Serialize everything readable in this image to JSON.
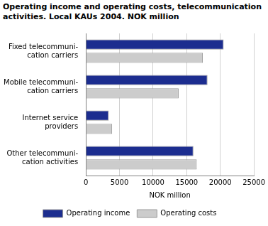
{
  "chart_data": {
    "type": "bar",
    "orientation": "horizontal",
    "title": "Operating income and operating costs, telecommunication activities. Local KAUs 2004. NOK million",
    "x_label": "NOK million",
    "categories": [
      "Fixed telecommuni-\ncation carriers",
      "Mobile telecommuni-\ncation carriers",
      "Internet service\nproviders",
      "Other telecommuni-\ncation activities"
    ],
    "series": [
      {
        "name": "Operating income",
        "color": "#1c2d8f",
        "values": [
          20500,
          18100,
          3400,
          16000
        ]
      },
      {
        "name": "Operating costs",
        "color": "#cccccc",
        "values": [
          17400,
          13800,
          3900,
          16500
        ]
      }
    ],
    "xlim": [
      0,
      25000
    ],
    "xticks": [
      0,
      5000,
      10000,
      15000,
      20000,
      25000
    ],
    "grid": true,
    "legend": "bottom"
  }
}
